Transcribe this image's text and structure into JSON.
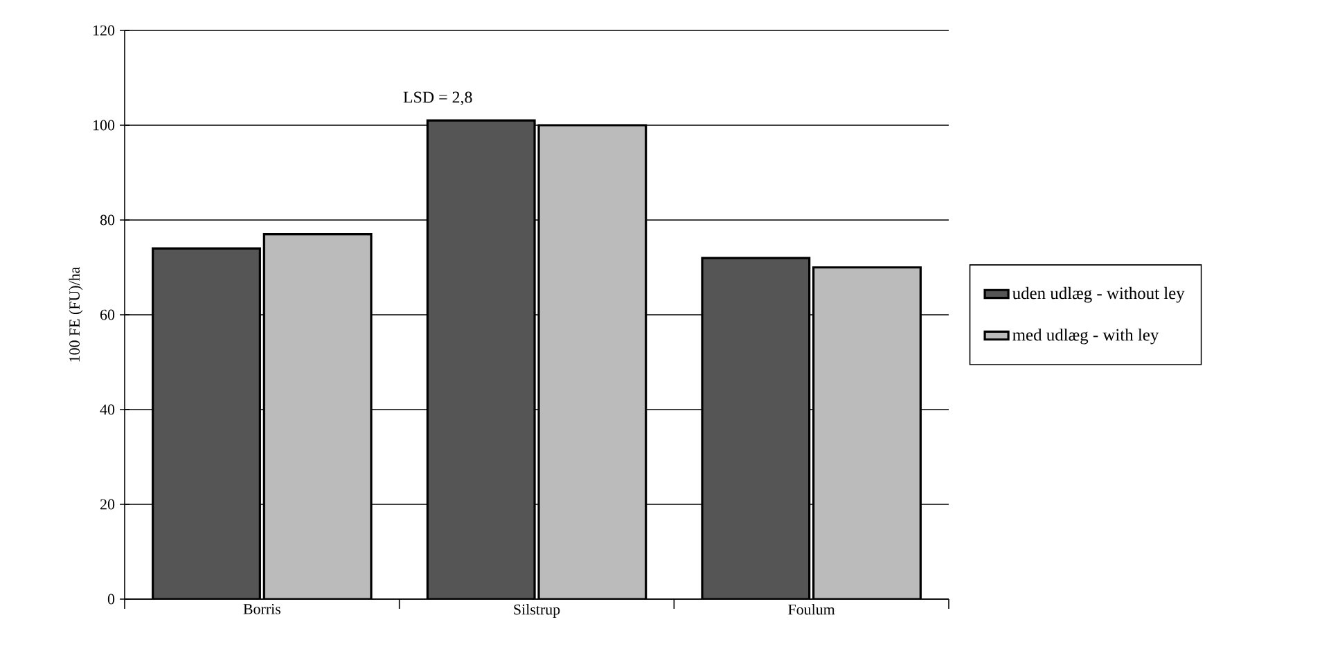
{
  "chart_data": {
    "type": "bar",
    "ylabel": "100 FE (FU)/ha",
    "categories": [
      "Borris",
      "Silstrup",
      "Foulum"
    ],
    "series": [
      {
        "name": "uden udlæg - without ley",
        "color": "#555555",
        "values": [
          74,
          101,
          72
        ]
      },
      {
        "name": "med udlæg - with ley",
        "color": "#bbbbbb",
        "values": [
          77,
          100,
          70
        ]
      }
    ],
    "ylim": [
      0,
      120
    ],
    "yticks": [
      0,
      20,
      40,
      60,
      80,
      100,
      120
    ],
    "grid": "y",
    "legend": "right",
    "annotations": [
      "LSD = 2,8"
    ]
  }
}
